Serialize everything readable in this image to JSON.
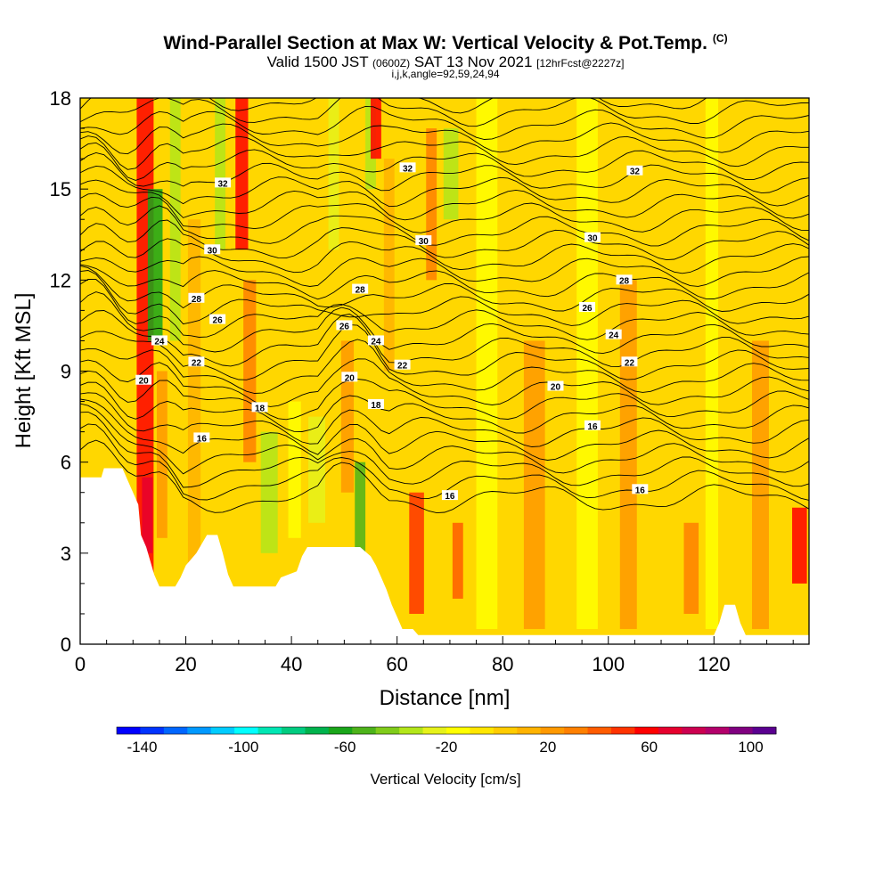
{
  "header": {
    "title": "Wind-Parallel Section at Max W: Vertical Velocity & Pot.Temp.",
    "copyright_mark": "(C)",
    "valid_prefix": "Valid 1500 JST",
    "valid_utc": "(0600Z)",
    "valid_date": "SAT 13 Nov 2021",
    "forecast_info": "[12hrFcst@2227z]",
    "params": "i,j,k,angle=92,59,24,94"
  },
  "colorbar": {
    "title": "Vertical Velocity [cm/s]",
    "tick_labels": [
      "-140",
      "-100",
      "-60",
      "-20",
      "20",
      "60",
      "100"
    ],
    "tick_values": [
      -140,
      -100,
      -60,
      -20,
      20,
      60,
      100
    ],
    "range": [
      -150,
      110
    ],
    "colors": [
      "#0000ff",
      "#0033ff",
      "#0066ff",
      "#0099ff",
      "#00ccff",
      "#00ffff",
      "#00e6b3",
      "#00cc80",
      "#00b34d",
      "#1aa61a",
      "#4db31a",
      "#80cc1a",
      "#b3e61a",
      "#e6f21a",
      "#ffff00",
      "#ffe600",
      "#ffcc00",
      "#ffb300",
      "#ff9900",
      "#ff8000",
      "#ff5c00",
      "#ff3300",
      "#ff0000",
      "#e6002e",
      "#cc0050",
      "#b3006b",
      "#800080",
      "#5a0090"
    ]
  },
  "chart_data": {
    "type": "heatmap",
    "title": "Wind-Parallel Section at Max W: Vertical Velocity & Pot.Temp.",
    "xlabel": "Distance [nm]",
    "ylabel": "Height [Kft MSL]",
    "xlim": [
      0,
      138
    ],
    "ylim": [
      0,
      18
    ],
    "x_ticks": [
      0,
      20,
      40,
      60,
      80,
      100,
      120
    ],
    "y_ticks": [
      0,
      3,
      6,
      9,
      12,
      15,
      18
    ],
    "filled_field": "Vertical Velocity [cm/s]",
    "contour_field": "Potential temperature",
    "contour_levels": [
      16,
      18,
      20,
      22,
      24,
      26,
      28,
      30,
      32
    ],
    "contour_labels": [
      {
        "text": "32",
        "x": 27,
        "y": 15.2
      },
      {
        "text": "32",
        "x": 62,
        "y": 15.7
      },
      {
        "text": "32",
        "x": 105,
        "y": 15.6
      },
      {
        "text": "30",
        "x": 25,
        "y": 13.0
      },
      {
        "text": "30",
        "x": 65,
        "y": 13.3
      },
      {
        "text": "30",
        "x": 97,
        "y": 13.4
      },
      {
        "text": "28",
        "x": 22,
        "y": 11.4
      },
      {
        "text": "28",
        "x": 53,
        "y": 11.7
      },
      {
        "text": "28",
        "x": 103,
        "y": 12.0
      },
      {
        "text": "26",
        "x": 26,
        "y": 10.7
      },
      {
        "text": "26",
        "x": 50,
        "y": 10.5
      },
      {
        "text": "26",
        "x": 96,
        "y": 11.1
      },
      {
        "text": "24",
        "x": 15,
        "y": 10.0
      },
      {
        "text": "24",
        "x": 56,
        "y": 10.0
      },
      {
        "text": "24",
        "x": 101,
        "y": 10.2
      },
      {
        "text": "22",
        "x": 22,
        "y": 9.3
      },
      {
        "text": "22",
        "x": 61,
        "y": 9.2
      },
      {
        "text": "22",
        "x": 104,
        "y": 9.3
      },
      {
        "text": "20",
        "x": 12,
        "y": 8.7
      },
      {
        "text": "20",
        "x": 51,
        "y": 8.8
      },
      {
        "text": "20",
        "x": 90,
        "y": 8.5
      },
      {
        "text": "18",
        "x": 34,
        "y": 7.8
      },
      {
        "text": "18",
        "x": 56,
        "y": 7.9
      },
      {
        "text": "16",
        "x": 23,
        "y": 6.8
      },
      {
        "text": "16",
        "x": 97,
        "y": 7.2
      },
      {
        "text": "16",
        "x": 106,
        "y": 5.1
      },
      {
        "text": "16",
        "x": 70,
        "y": 4.9
      }
    ],
    "terrain": [
      [
        0,
        5.5
      ],
      [
        4,
        5.5
      ],
      [
        4.5,
        5.8
      ],
      [
        8,
        5.8
      ],
      [
        9,
        5.4
      ],
      [
        10,
        5.0
      ],
      [
        11,
        4.6
      ],
      [
        11.5,
        3.6
      ],
      [
        12.5,
        3.2
      ],
      [
        13,
        2.9
      ],
      [
        14,
        2.3
      ],
      [
        15,
        1.9
      ],
      [
        18,
        1.9
      ],
      [
        19,
        2.2
      ],
      [
        20,
        2.6
      ],
      [
        22,
        3.0
      ],
      [
        23,
        3.3
      ],
      [
        24,
        3.6
      ],
      [
        26,
        3.6
      ],
      [
        27,
        3.0
      ],
      [
        28,
        2.3
      ],
      [
        29,
        1.9
      ],
      [
        37,
        1.9
      ],
      [
        38,
        2.2
      ],
      [
        41,
        2.4
      ],
      [
        42,
        2.9
      ],
      [
        43,
        3.2
      ],
      [
        53,
        3.2
      ],
      [
        55,
        2.9
      ],
      [
        56,
        2.6
      ],
      [
        57,
        2.2
      ],
      [
        58,
        1.8
      ],
      [
        59,
        1.3
      ],
      [
        60,
        0.9
      ],
      [
        61,
        0.5
      ],
      [
        63,
        0.5
      ],
      [
        64,
        0.3
      ],
      [
        71,
        0.3
      ],
      [
        71,
        0.3
      ],
      [
        120,
        0.3
      ],
      [
        121,
        0.7
      ],
      [
        122,
        1.3
      ],
      [
        124,
        1.3
      ],
      [
        125,
        0.7
      ],
      [
        126,
        0.3
      ],
      [
        138,
        0.3
      ]
    ]
  }
}
